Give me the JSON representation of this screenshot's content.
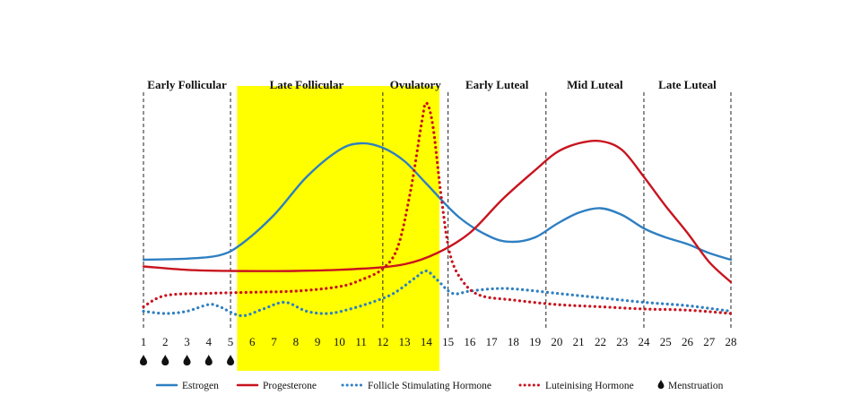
{
  "chart_data": {
    "type": "line",
    "x": [
      1,
      2,
      3,
      4,
      5,
      6,
      7,
      8,
      9,
      10,
      11,
      12,
      13,
      14,
      15,
      16,
      17,
      18,
      19,
      20,
      21,
      22,
      23,
      24,
      25,
      26,
      27,
      28
    ],
    "xlim": [
      1,
      28
    ],
    "ylim": [
      0,
      100
    ],
    "phases": [
      {
        "label": "Early Follicular",
        "start": 1,
        "end": 5
      },
      {
        "label": "Late Follicular",
        "start": 5,
        "end": 12
      },
      {
        "label": "Ovulatory",
        "start": 12,
        "end": 15
      },
      {
        "label": "Early Luteal",
        "start": 15,
        "end": 19.5
      },
      {
        "label": "Mid Luteal",
        "start": 19.5,
        "end": 24
      },
      {
        "label": "Late Luteal",
        "start": 24,
        "end": 28
      }
    ],
    "phase_dividers": [
      1,
      5,
      12,
      15,
      19.5,
      24,
      28
    ],
    "highlight": {
      "start": 5.3,
      "end": 14.6,
      "color": "#ffff00"
    },
    "menstruation_days": [
      1,
      2,
      3,
      4,
      5
    ],
    "series": [
      {
        "name": "Estrogen",
        "style": "solid",
        "color": "#2e7fc2",
        "points": [
          [
            1,
            28
          ],
          [
            3,
            28.5
          ],
          [
            4.5,
            30
          ],
          [
            5.5,
            35
          ],
          [
            7,
            48
          ],
          [
            8.5,
            65
          ],
          [
            10,
            77
          ],
          [
            11,
            80
          ],
          [
            12,
            78
          ],
          [
            13,
            72
          ],
          [
            14,
            62
          ],
          [
            15.5,
            47
          ],
          [
            17,
            38
          ],
          [
            18,
            36
          ],
          [
            19,
            38
          ],
          [
            20,
            44
          ],
          [
            21,
            49
          ],
          [
            22,
            51
          ],
          [
            23,
            48
          ],
          [
            24,
            42
          ],
          [
            25,
            38
          ],
          [
            26,
            35
          ],
          [
            27,
            31
          ],
          [
            28,
            28
          ]
        ]
      },
      {
        "name": "Progesterone",
        "style": "solid",
        "color": "#c8141e",
        "points": [
          [
            1,
            25
          ],
          [
            3,
            23.5
          ],
          [
            5,
            23
          ],
          [
            8,
            23
          ],
          [
            11,
            24
          ],
          [
            13,
            26
          ],
          [
            14.5,
            31
          ],
          [
            16,
            40
          ],
          [
            17.5,
            55
          ],
          [
            19,
            68
          ],
          [
            20,
            76
          ],
          [
            21,
            80
          ],
          [
            22,
            81
          ],
          [
            23,
            77
          ],
          [
            24,
            65
          ],
          [
            25,
            52
          ],
          [
            26,
            40
          ],
          [
            27,
            27
          ],
          [
            28,
            18
          ]
        ]
      },
      {
        "name": "Follicle Stimulating Hormone",
        "style": "dotted",
        "color": "#2e7fc2",
        "points": [
          [
            1,
            5
          ],
          [
            2,
            4
          ],
          [
            3,
            5
          ],
          [
            4,
            8
          ],
          [
            4.5,
            7
          ],
          [
            5.5,
            3
          ],
          [
            6.5,
            6
          ],
          [
            7.5,
            9
          ],
          [
            8.5,
            5
          ],
          [
            9.5,
            4
          ],
          [
            10.5,
            6
          ],
          [
            11.5,
            9
          ],
          [
            12.5,
            13
          ],
          [
            13.5,
            20
          ],
          [
            14,
            23
          ],
          [
            14.5,
            19
          ],
          [
            15.2,
            13
          ],
          [
            16,
            14
          ],
          [
            17,
            15
          ],
          [
            18,
            15
          ],
          [
            20,
            13
          ],
          [
            22,
            11
          ],
          [
            24,
            9
          ],
          [
            26,
            7.5
          ],
          [
            28,
            5
          ]
        ]
      },
      {
        "name": "Luteinising Hormone",
        "style": "dotted",
        "color": "#c8141e",
        "points": [
          [
            1,
            7
          ],
          [
            2,
            12
          ],
          [
            4,
            13
          ],
          [
            6,
            13.5
          ],
          [
            8,
            14
          ],
          [
            10,
            16
          ],
          [
            11,
            19
          ],
          [
            12,
            24
          ],
          [
            12.7,
            34
          ],
          [
            13.3,
            60
          ],
          [
            13.8,
            90
          ],
          [
            14,
            98
          ],
          [
            14.3,
            88
          ],
          [
            14.7,
            55
          ],
          [
            15.1,
            30
          ],
          [
            15.7,
            18
          ],
          [
            16.5,
            12
          ],
          [
            18,
            10
          ],
          [
            20,
            8
          ],
          [
            22,
            7
          ],
          [
            24,
            6
          ],
          [
            26,
            5.5
          ],
          [
            28,
            4
          ]
        ]
      }
    ],
    "legend": [
      {
        "label": "Estrogen",
        "style": "solid",
        "color": "#2e7fc2"
      },
      {
        "label": "Progesterone",
        "style": "solid",
        "color": "#c8141e"
      },
      {
        "label": "Follicle Stimulating Hormone",
        "style": "dotted",
        "color": "#2e7fc2"
      },
      {
        "label": "Luteinising Hormone",
        "style": "dotted",
        "color": "#c8141e"
      },
      {
        "label": "Menstruation",
        "style": "drop",
        "color": "#111111"
      }
    ],
    "legend_position": "bottom"
  }
}
